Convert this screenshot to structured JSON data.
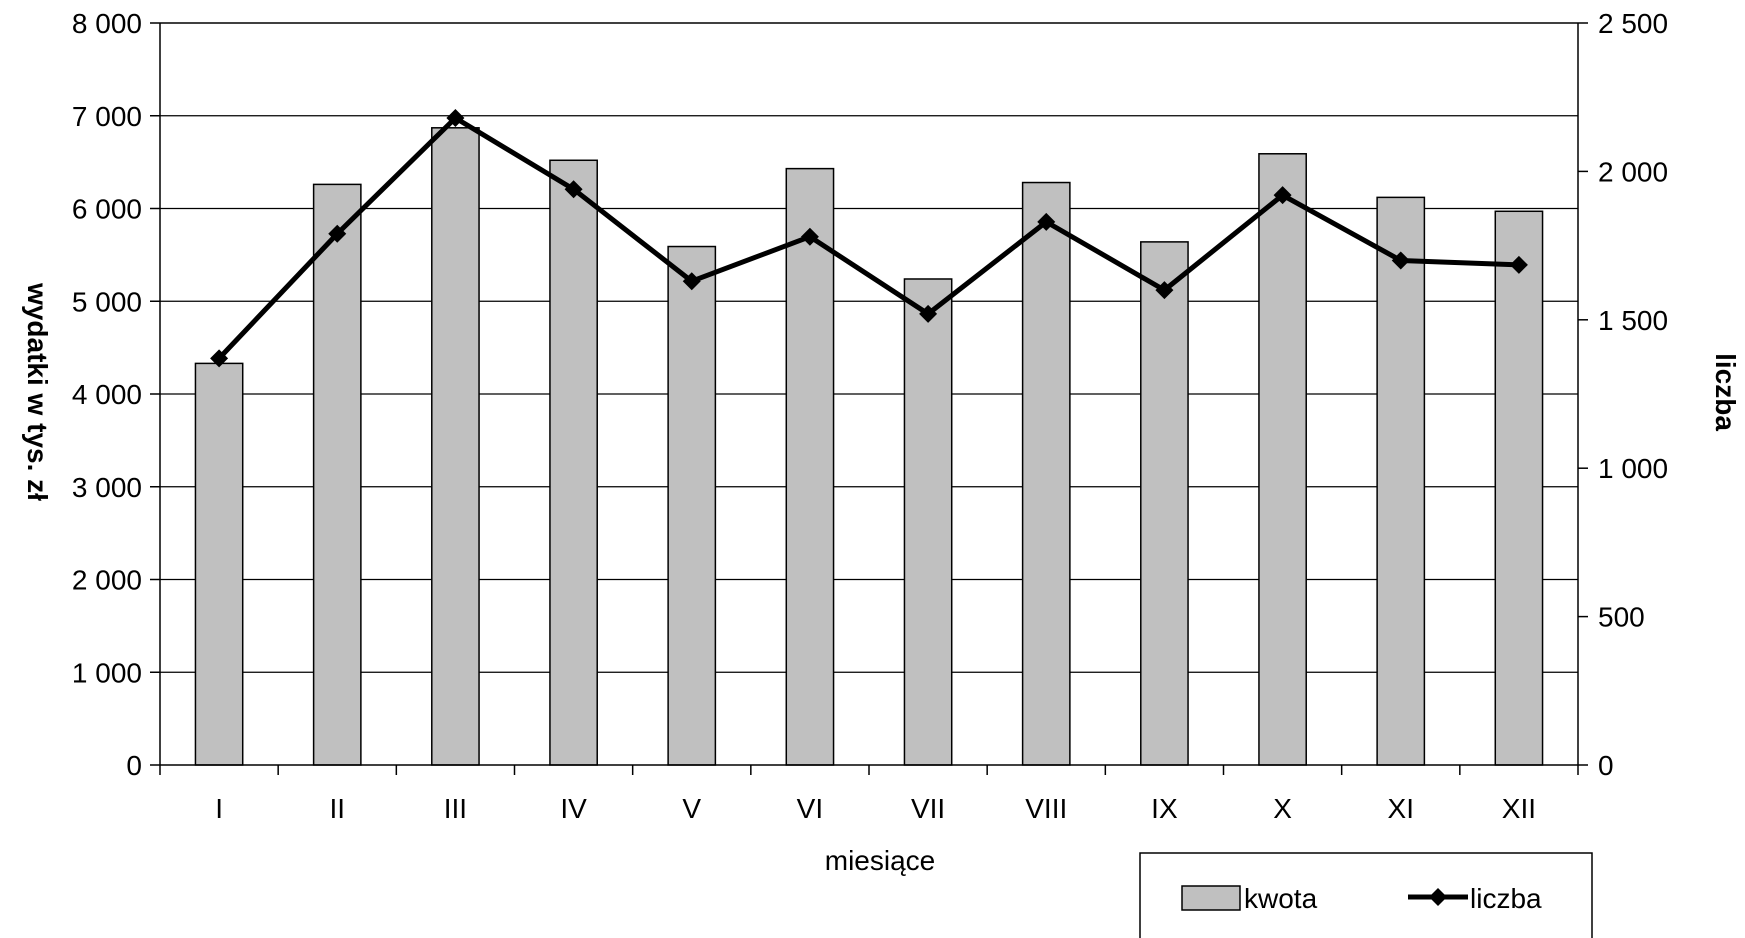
{
  "chart_data": {
    "type": "bar",
    "categories": [
      "I",
      "II",
      "III",
      "IV",
      "V",
      "VI",
      "VII",
      "VIII",
      "IX",
      "X",
      "XI",
      "XII"
    ],
    "series": [
      {
        "name": "kwota",
        "type": "bar",
        "axis": "left",
        "color": "#c0c0c0",
        "values": [
          4330,
          6260,
          6870,
          6520,
          5590,
          6430,
          5240,
          6280,
          5640,
          6590,
          6120,
          5970
        ]
      },
      {
        "name": "liczba",
        "type": "line",
        "axis": "right",
        "color": "#000000",
        "marker": "diamond",
        "values": [
          1370,
          1790,
          2180,
          1940,
          1630,
          1780,
          1520,
          1830,
          1600,
          1920,
          1700,
          1685
        ]
      }
    ],
    "xlabel": "miesiące",
    "ylabel": "wydatki w tys. zł",
    "y2label": "liczba",
    "ylim": [
      0,
      8000
    ],
    "y2lim": [
      0,
      2500
    ],
    "yticks": [
      "0",
      "1 000",
      "2 000",
      "3 000",
      "4 000",
      "5 000",
      "6 000",
      "7 000",
      "8 000"
    ],
    "y2ticks": [
      "0",
      "500",
      "1 000",
      "1 500",
      "2 000",
      "2 500"
    ],
    "grid": true,
    "legend_position": "bottom-right"
  }
}
